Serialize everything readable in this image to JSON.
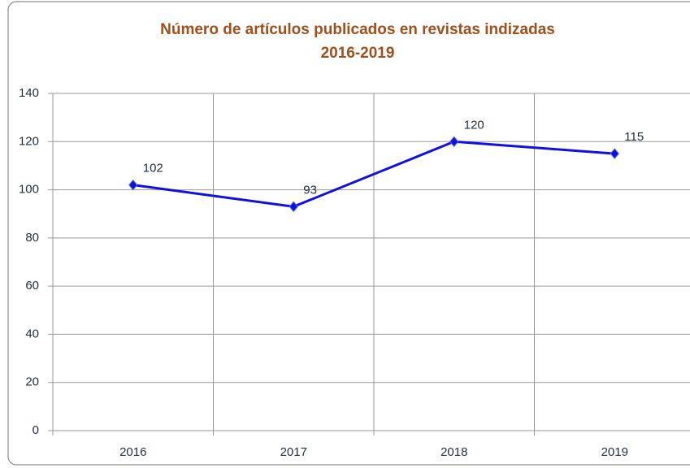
{
  "chart_data": {
    "type": "line",
    "title": "Número de artículos publicados en revistas indizadas",
    "subtitle": "2016-2019",
    "categories": [
      "2016",
      "2017",
      "2018",
      "2019"
    ],
    "values": [
      102,
      93,
      120,
      115
    ],
    "color": "#1010e6",
    "ylim": [
      0,
      140
    ],
    "yticks": [
      0,
      20,
      40,
      60,
      80,
      100,
      120,
      140
    ],
    "grid": true
  }
}
